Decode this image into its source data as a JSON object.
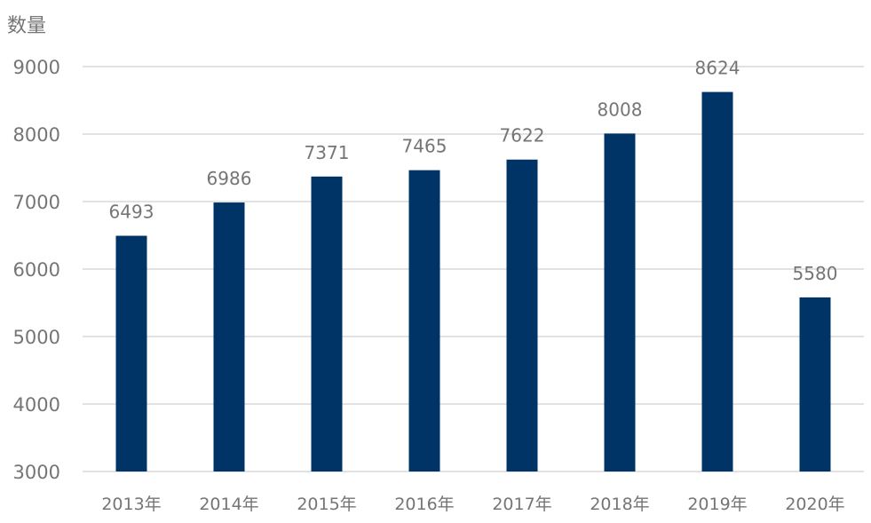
{
  "chart_data": {
    "type": "bar",
    "title": "",
    "ylabel": "数量",
    "xlabel": "",
    "categories": [
      "2013年",
      "2014年",
      "2015年",
      "2016年",
      "2017年",
      "2018年",
      "2019年",
      "2020年"
    ],
    "values": [
      6493,
      6986,
      7371,
      7465,
      7622,
      8008,
      8624,
      5580
    ],
    "ylim": [
      3000,
      9000
    ],
    "yticks": [
      3000,
      4000,
      5000,
      6000,
      7000,
      8000,
      9000
    ],
    "grid": true,
    "data_labels": true,
    "colors": {
      "bar": "#003366",
      "grid": "#d9d9d9",
      "text": "#757575"
    }
  }
}
